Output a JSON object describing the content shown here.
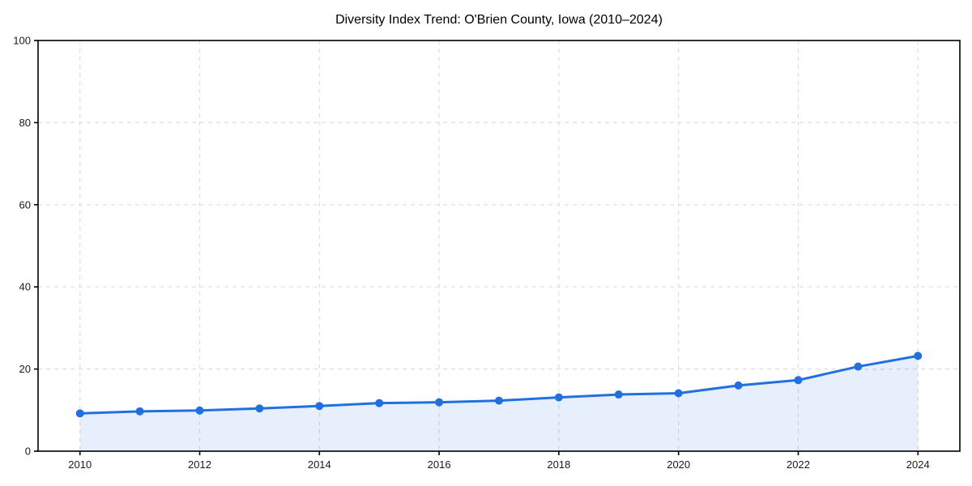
{
  "chart_data": {
    "type": "line",
    "title": "Diversity Index Trend: O'Brien County, Iowa (2010–2024)",
    "xlabel": "",
    "ylabel": "",
    "x": [
      2010,
      2011,
      2012,
      2013,
      2014,
      2015,
      2016,
      2017,
      2018,
      2019,
      2020,
      2021,
      2022,
      2023,
      2024
    ],
    "series": [
      {
        "name": "Diversity Index",
        "values": [
          9.2,
          9.7,
          9.9,
          10.4,
          11.0,
          11.7,
          11.9,
          12.3,
          13.1,
          13.8,
          14.1,
          16.0,
          17.3,
          20.6,
          23.2
        ]
      }
    ],
    "xticks": [
      2010,
      2012,
      2014,
      2016,
      2018,
      2020,
      2022,
      2024
    ],
    "yticks": [
      0,
      20,
      40,
      60,
      80,
      100
    ],
    "xlim": [
      2009.3,
      2024.7
    ],
    "ylim": [
      0,
      100
    ],
    "grid": true,
    "grid_style": "dashed",
    "legend": "none",
    "colors": {
      "line": "#2270e0",
      "marker": "#2270e0",
      "area_fill": "#2270e0",
      "area_fill_opacity": 0.11,
      "grid": "#dedede",
      "axis": "#000000",
      "tick_text": "#1a1a1a",
      "title_text": "#000000",
      "background": "#ffffff"
    }
  }
}
